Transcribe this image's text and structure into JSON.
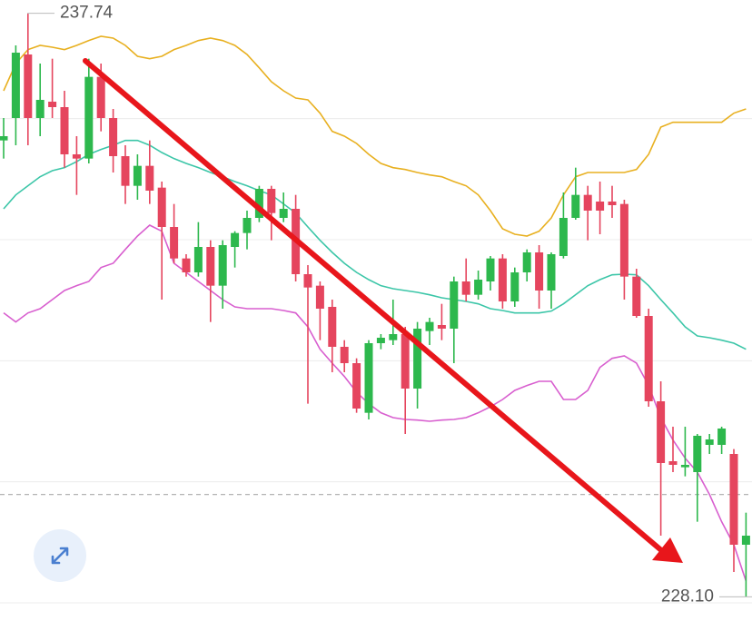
{
  "chart_data": {
    "type": "candlestick",
    "ylim": [
      227.7,
      237.96
    ],
    "grid_lines": [
      236,
      234,
      232,
      230,
      228
    ],
    "reference_line": 229.79,
    "up_color": "#2db84d",
    "down_color": "#e5455e",
    "open": [
      235.64,
      236.01,
      237.06,
      236.01,
      236.28,
      236.19,
      235.41,
      235.34,
      236.69,
      236.01,
      235.38,
      234.89,
      235.22,
      234.86,
      234.21,
      233.69,
      233.46,
      233.88,
      233.24,
      233.88,
      234.11,
      234.36,
      234.84,
      234.36,
      234.51,
      233.43,
      233.24,
      232.89,
      232.23,
      231.96,
      231.14,
      232.29,
      232.34,
      232.44,
      231.54,
      232.49,
      232.59,
      232.53,
      233.31,
      233.09,
      233.31,
      233.69,
      232.98,
      233.46,
      233.79,
      233.16,
      233.73,
      234.36,
      234.74,
      234.63,
      234.63,
      234.59,
      233.39,
      232.74,
      231.33,
      230.34,
      230.24,
      230.16,
      230.61,
      230.61,
      230.46,
      228.96
    ],
    "high": [
      236.01,
      237.21,
      237.74,
      236.91,
      236.99,
      236.46,
      235.71,
      236.99,
      236.91,
      236.16,
      235.56,
      235.41,
      235.64,
      234.96,
      234.59,
      233.76,
      234.29,
      233.99,
      233.99,
      234.14,
      234.48,
      234.89,
      234.89,
      234.78,
      234.74,
      233.58,
      233.31,
      233.01,
      232.34,
      232.04,
      232.34,
      232.44,
      233.01,
      232.56,
      232.64,
      232.71,
      232.94,
      233.39,
      233.69,
      233.49,
      233.73,
      233.76,
      233.54,
      233.84,
      233.91,
      233.79,
      234.78,
      235.19,
      234.89,
      234.96,
      234.89,
      234.66,
      233.52,
      232.86,
      231.66,
      230.91,
      230.91,
      230.79,
      230.79,
      230.91,
      230.54,
      229.49
    ],
    "low": [
      235.34,
      235.56,
      235.56,
      235.71,
      236.01,
      235.19,
      234.74,
      235.26,
      235.79,
      235.11,
      234.59,
      234.66,
      234.59,
      233.01,
      233.61,
      233.39,
      233.39,
      232.64,
      232.86,
      233.54,
      233.84,
      234.29,
      233.99,
      234.29,
      233.31,
      231.29,
      232.34,
      231.81,
      231.81,
      231.14,
      231.03,
      232.19,
      232.26,
      230.79,
      231.21,
      232.26,
      232.34,
      231.96,
      232.98,
      233.01,
      233.16,
      232.86,
      232.89,
      233.31,
      232.86,
      232.86,
      233.69,
      234.33,
      233.99,
      234.09,
      234.36,
      233.01,
      232.71,
      231.24,
      229.11,
      230.16,
      230.09,
      229.34,
      230.46,
      230.46,
      228.51,
      228.1
    ],
    "close": [
      235.71,
      237.09,
      236.01,
      236.31,
      236.19,
      235.41,
      235.34,
      236.69,
      236.01,
      235.38,
      234.89,
      235.22,
      234.81,
      234.21,
      233.69,
      233.46,
      233.88,
      233.24,
      233.91,
      234.11,
      234.36,
      234.84,
      234.44,
      234.51,
      233.43,
      233.21,
      232.86,
      232.23,
      231.96,
      231.21,
      232.29,
      232.38,
      232.44,
      231.54,
      232.53,
      232.64,
      232.53,
      233.31,
      233.09,
      233.34,
      233.69,
      232.98,
      233.46,
      233.79,
      233.16,
      233.76,
      234.36,
      234.74,
      234.48,
      234.48,
      234.57,
      233.39,
      232.74,
      231.33,
      230.31,
      230.28,
      230.28,
      230.76,
      230.7,
      230.88,
      228.96,
      229.11
    ],
    "series": [
      {
        "color": "#e8b020",
        "values": [
          236.46,
          236.91,
          237.14,
          237.21,
          237.18,
          237.14,
          237.21,
          237.29,
          237.36,
          237.33,
          237.21,
          237.03,
          236.99,
          237.03,
          237.14,
          237.21,
          237.29,
          237.33,
          237.29,
          237.21,
          237.06,
          236.84,
          236.61,
          236.46,
          236.34,
          236.31,
          236.09,
          235.79,
          235.71,
          235.59,
          235.41,
          235.26,
          235.19,
          235.16,
          235.11,
          235.07,
          235.04,
          234.96,
          234.89,
          234.74,
          234.48,
          234.18,
          234.09,
          234.06,
          234.14,
          234.36,
          234.74,
          235.04,
          235.11,
          235.11,
          235.11,
          235.11,
          235.16,
          235.41,
          235.86,
          235.94,
          235.94,
          235.94,
          235.94,
          235.94,
          236.09,
          236.16
        ]
      },
      {
        "color": "#3cc6a8",
        "values": [
          234.51,
          234.74,
          234.89,
          235.04,
          235.14,
          235.19,
          235.29,
          235.41,
          235.49,
          235.56,
          235.64,
          235.64,
          235.56,
          235.44,
          235.34,
          235.26,
          235.19,
          235.11,
          235.04,
          234.96,
          234.89,
          234.81,
          234.74,
          234.59,
          234.44,
          234.21,
          233.99,
          233.79,
          233.61,
          233.46,
          233.34,
          233.24,
          233.19,
          233.16,
          233.13,
          233.09,
          233.04,
          233.01,
          232.98,
          232.94,
          232.86,
          232.83,
          232.79,
          232.79,
          232.79,
          232.82,
          232.94,
          233.09,
          233.24,
          233.34,
          233.42,
          233.43,
          233.42,
          233.24,
          233.01,
          232.79,
          232.56,
          232.41,
          232.38,
          232.34,
          232.29,
          232.19
        ]
      },
      {
        "color": "#d85fcf",
        "values": [
          232.79,
          232.64,
          232.79,
          232.86,
          233.01,
          233.16,
          233.24,
          233.31,
          233.54,
          233.61,
          233.84,
          234.06,
          234.24,
          234.14,
          233.61,
          233.46,
          233.31,
          233.16,
          233.01,
          232.89,
          232.86,
          232.86,
          232.86,
          232.83,
          232.79,
          232.56,
          232.19,
          231.96,
          231.74,
          231.48,
          231.29,
          231.14,
          231.06,
          231.03,
          231.02,
          231.0,
          231.02,
          231.03,
          231.06,
          231.14,
          231.24,
          231.36,
          231.51,
          231.59,
          231.66,
          231.66,
          231.36,
          231.36,
          231.51,
          231.89,
          232.04,
          232.08,
          231.96,
          231.59,
          231.06,
          230.69,
          230.39,
          230.16,
          229.79,
          229.34,
          228.96,
          228.36
        ]
      }
    ],
    "annotations": [
      {
        "text": "237.74",
        "value": 237.74
      },
      {
        "text": "228.10",
        "value": 228.1
      }
    ]
  }
}
